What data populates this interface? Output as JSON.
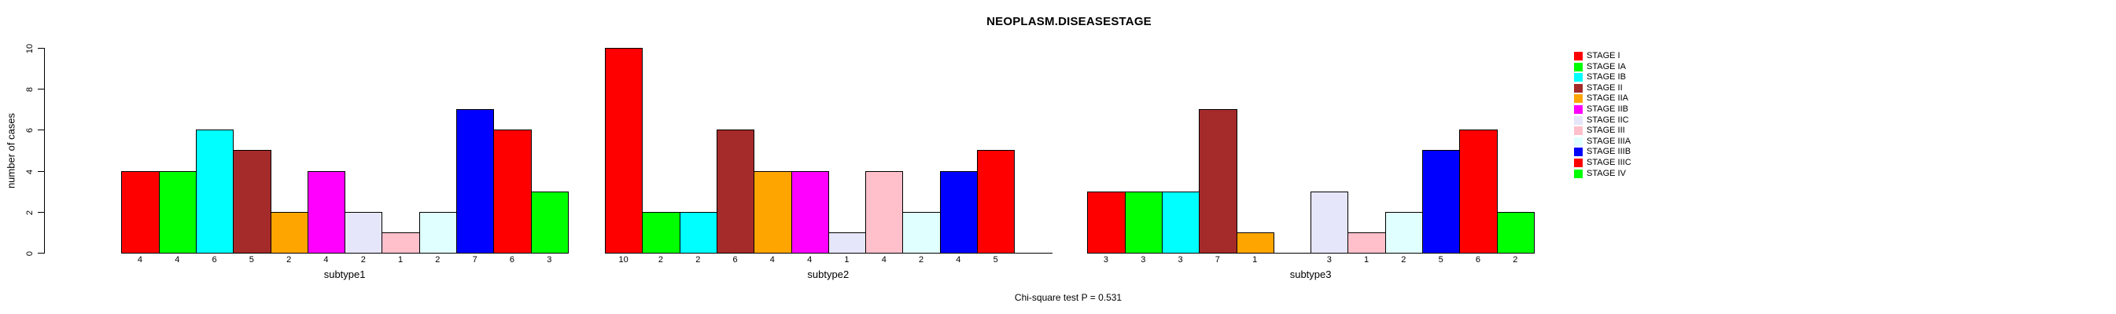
{
  "title": "NEOPLASM.DISEASESTAGE",
  "footnote": "Chi-square test P = 0.531",
  "background_color": "#FFFFFF",
  "text_color": "#000000",
  "chart_data": {
    "type": "bar",
    "title": "NEOPLASM.DISEASESTAGE",
    "xlabel": "",
    "ylabel": "number of cases",
    "ylim": [
      0,
      10
    ],
    "yticks": [
      "0",
      "2",
      "4",
      "6",
      "8",
      "10"
    ],
    "grid": false,
    "legend_position": "right",
    "bar_border_color": "#000000",
    "stages": [
      {
        "label": "STAGE I",
        "color": "#FF0000"
      },
      {
        "label": "STAGE IA",
        "color": "#00FF00"
      },
      {
        "label": "STAGE IB",
        "color": "#00FFFF"
      },
      {
        "label": "STAGE II",
        "color": "#A52A2A"
      },
      {
        "label": "STAGE IIA",
        "color": "#FFA500"
      },
      {
        "label": "STAGE IIB",
        "color": "#FF00FF"
      },
      {
        "label": "STAGE IIC",
        "color": "#E6E6FA"
      },
      {
        "label": "STAGE III",
        "color": "#FFC0CB"
      },
      {
        "label": "STAGE IIIA",
        "color": "#E0FFFF"
      },
      {
        "label": "STAGE IIIB",
        "color": "#0000FF"
      },
      {
        "label": "STAGE IIIC",
        "color": "#FF0000"
      },
      {
        "label": "STAGE IV",
        "color": "#00FF00"
      }
    ],
    "groups": [
      {
        "label": "subtype1",
        "values": [
          4,
          4,
          6,
          5,
          2,
          4,
          2,
          1,
          2,
          7,
          6,
          3
        ]
      },
      {
        "label": "subtype2",
        "values": [
          10,
          2,
          2,
          6,
          4,
          4,
          1,
          4,
          2,
          4,
          5,
          0
        ]
      },
      {
        "label": "subtype3",
        "values": [
          3,
          3,
          3,
          7,
          1,
          0,
          3,
          1,
          2,
          5,
          6,
          2
        ]
      }
    ],
    "footnote": "Chi-square test P = 0.531"
  }
}
